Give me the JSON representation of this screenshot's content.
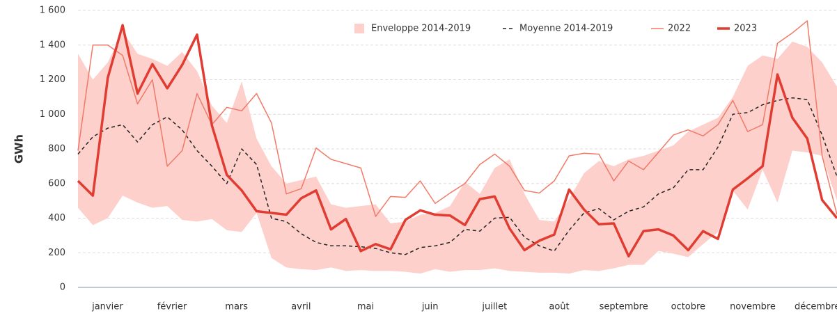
{
  "chart_data": {
    "type": "line",
    "y_label": "GWh",
    "months": [
      "janvier",
      "février",
      "mars",
      "avril",
      "mai",
      "juin",
      "juillet",
      "août",
      "septembre",
      "octobre",
      "novembre",
      "décembre"
    ],
    "ylim": [
      0,
      1600
    ],
    "yticks": [
      0,
      200,
      400,
      600,
      800,
      {
        "value": 1000,
        "label": "1 000"
      },
      {
        "value": 1200,
        "label": "1 200"
      },
      {
        "value": 1400,
        "label": "1 400"
      },
      {
        "value": 1600,
        "label": "1 600"
      }
    ],
    "grid": true,
    "legend": "top-right",
    "series": [
      {
        "name": "Enveloppe 2014-2019",
        "color": "#fdd0cc",
        "upper": [
          1350,
          1200,
          1300,
          1480,
          1350,
          1320,
          1280,
          1360,
          1250,
          1050,
          950,
          1190,
          860,
          700,
          600,
          620,
          640,
          480,
          460,
          470,
          480,
          370,
          380,
          420,
          430,
          470,
          610,
          540,
          690,
          740,
          540,
          390,
          380,
          510,
          660,
          730,
          700,
          740,
          760,
          790,
          820,
          900,
          940,
          980,
          1100,
          1280,
          1340,
          1320,
          1420,
          1390,
          1300,
          1160
        ],
        "lower": [
          460,
          360,
          400,
          530,
          490,
          460,
          470,
          390,
          380,
          395,
          330,
          320,
          430,
          170,
          115,
          105,
          100,
          115,
          95,
          100,
          95,
          95,
          90,
          80,
          105,
          90,
          100,
          100,
          110,
          95,
          90,
          85,
          85,
          80,
          100,
          95,
          110,
          130,
          130,
          210,
          195,
          175,
          250,
          320,
          560,
          450,
          680,
          490,
          790,
          780,
          760,
          500
        ]
      },
      {
        "name": "Moyenne 2014-2019",
        "color": "#222222",
        "dash": true,
        "line_width": 1.5,
        "values": [
          770,
          870,
          920,
          940,
          840,
          940,
          985,
          910,
          790,
          700,
          600,
          800,
          710,
          400,
          380,
          310,
          260,
          240,
          240,
          235,
          225,
          200,
          190,
          230,
          240,
          260,
          335,
          325,
          400,
          405,
          290,
          240,
          210,
          330,
          430,
          455,
          390,
          440,
          465,
          540,
          575,
          680,
          680,
          810,
          1000,
          1010,
          1055,
          1080,
          1095,
          1085,
          880,
          640
        ]
      },
      {
        "name": "2022",
        "color": "#f07a68",
        "line_width": 1.5,
        "values": [
          790,
          1400,
          1400,
          1340,
          1060,
          1200,
          700,
          790,
          1120,
          940,
          1040,
          1020,
          1120,
          950,
          540,
          570,
          805,
          740,
          715,
          690,
          410,
          525,
          520,
          615,
          485,
          545,
          600,
          710,
          770,
          700,
          560,
          545,
          615,
          760,
          775,
          770,
          615,
          730,
          680,
          780,
          880,
          910,
          875,
          940,
          1080,
          900,
          940,
          1410,
          1470,
          1540,
          760,
          420
        ]
      },
      {
        "name": "2023",
        "color": "#e03c31",
        "line_width": 3.5,
        "values": [
          615,
          530,
          1210,
          1515,
          1120,
          1290,
          1150,
          1285,
          1460,
          935,
          650,
          560,
          440,
          430,
          420,
          515,
          560,
          335,
          395,
          210,
          250,
          220,
          390,
          445,
          420,
          415,
          360,
          510,
          525,
          340,
          215,
          270,
          305,
          565,
          450,
          365,
          370,
          180,
          325,
          335,
          300,
          215,
          325,
          280,
          565,
          630,
          700,
          1230,
          980,
          860,
          505,
          400
        ]
      }
    ]
  }
}
